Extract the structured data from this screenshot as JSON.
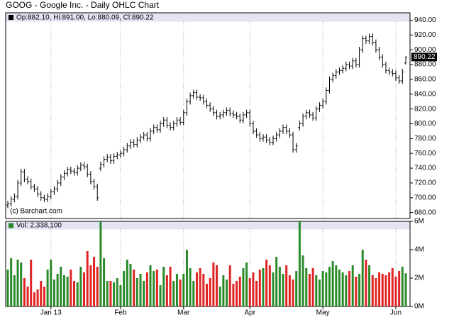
{
  "chart_data": {
    "type": "ohlc",
    "title": "GOOG - Google Inc. - Daily OHLC Chart",
    "ohlc_label": "Op:882.10, Hi:891.00, Lo:880.09, Cl:890.22",
    "last_label": "890.22",
    "credit": "(c) Barchart.com",
    "volume_label": "Vol: 2,338,100",
    "bar_color": "#000000",
    "up_color": "#2a8a2a",
    "down_color": "#e02424",
    "categories": [
      null,
      null,
      null,
      null,
      null,
      null,
      null,
      null,
      null,
      null,
      null,
      null,
      null,
      "Jan 13",
      null,
      null,
      null,
      null,
      null,
      null,
      null,
      null,
      null,
      null,
      null,
      null,
      null,
      null,
      null,
      null,
      null,
      null,
      null,
      null,
      "Feb",
      null,
      null,
      null,
      null,
      null,
      null,
      null,
      null,
      null,
      null,
      null,
      null,
      null,
      null,
      null,
      null,
      null,
      null,
      "Mar",
      null,
      null,
      null,
      null,
      null,
      null,
      null,
      null,
      null,
      null,
      null,
      null,
      null,
      null,
      null,
      null,
      null,
      null,
      null,
      "Apr",
      null,
      null,
      null,
      null,
      null,
      null,
      null,
      null,
      null,
      null,
      null,
      null,
      null,
      null,
      null,
      null,
      null,
      null,
      null,
      null,
      null,
      "May",
      null,
      null,
      null,
      null,
      null,
      null,
      null,
      null,
      null,
      null,
      null,
      null,
      null,
      null,
      null,
      null,
      null,
      null,
      null,
      null,
      null,
      "Jun",
      null,
      null,
      null
    ],
    "open": [
      690,
      692,
      698,
      702,
      720,
      735,
      725,
      722,
      715,
      712,
      705,
      700,
      698,
      702,
      708,
      712,
      720,
      728,
      733,
      738,
      736,
      734,
      740,
      744,
      742,
      732,
      722,
      715,
      740,
      745,
      752,
      755,
      750,
      756,
      758,
      760,
      765,
      770,
      775,
      772,
      778,
      782,
      785,
      780,
      790,
      795,
      792,
      800,
      805,
      798,
      795,
      800,
      805,
      802,
      815,
      830,
      838,
      842,
      836,
      835,
      830,
      825,
      820,
      815,
      810,
      812,
      815,
      818,
      814,
      812,
      810,
      805,
      812,
      815,
      800,
      790,
      785,
      780,
      782,
      778,
      775,
      780,
      785,
      790,
      795,
      790,
      785,
      765,
      795,
      800,
      810,
      815,
      812,
      808,
      820,
      825,
      830,
      845,
      860,
      865,
      870,
      872,
      875,
      880,
      878,
      885,
      880,
      900,
      915,
      912,
      918,
      910,
      900,
      890,
      880,
      872,
      870,
      868,
      862,
      858,
      882.1
    ],
    "high": [
      696,
      702,
      706,
      724,
      739,
      739,
      729,
      726,
      719,
      716,
      709,
      704,
      706,
      712,
      716,
      724,
      732,
      737,
      742,
      742,
      740,
      744,
      748,
      748,
      746,
      736,
      726,
      719,
      749,
      756,
      759,
      759,
      760,
      762,
      764,
      769,
      774,
      779,
      779,
      782,
      786,
      789,
      789,
      794,
      799,
      799,
      804,
      809,
      809,
      802,
      804,
      809,
      809,
      819,
      834,
      842,
      846,
      846,
      840,
      839,
      834,
      829,
      824,
      819,
      816,
      819,
      822,
      822,
      818,
      816,
      814,
      816,
      819,
      819,
      804,
      794,
      789,
      786,
      786,
      782,
      784,
      789,
      794,
      799,
      799,
      794,
      789,
      774,
      804,
      814,
      819,
      819,
      816,
      824,
      829,
      834,
      849,
      864,
      869,
      874,
      876,
      879,
      884,
      884,
      889,
      889,
      904,
      919,
      919,
      922,
      922,
      914,
      904,
      894,
      884,
      876,
      874,
      872,
      866,
      874,
      891.0
    ],
    "low": [
      686,
      688,
      694,
      698,
      716,
      721,
      718,
      711,
      708,
      701,
      696,
      694,
      694,
      698,
      704,
      708,
      716,
      724,
      729,
      732,
      730,
      730,
      736,
      738,
      728,
      718,
      711,
      696,
      736,
      741,
      748,
      746,
      746,
      752,
      754,
      756,
      761,
      766,
      768,
      768,
      774,
      778,
      776,
      776,
      786,
      788,
      788,
      796,
      794,
      791,
      791,
      796,
      798,
      798,
      811,
      826,
      834,
      832,
      831,
      826,
      821,
      816,
      811,
      806,
      806,
      808,
      811,
      810,
      808,
      806,
      801,
      801,
      808,
      796,
      786,
      781,
      776,
      776,
      774,
      771,
      771,
      776,
      781,
      786,
      786,
      781,
      761,
      761,
      791,
      796,
      806,
      808,
      804,
      804,
      816,
      821,
      826,
      841,
      856,
      861,
      866,
      868,
      871,
      874,
      874,
      876,
      876,
      896,
      908,
      908,
      906,
      896,
      886,
      876,
      868,
      866,
      864,
      858,
      854,
      854,
      880.09
    ],
    "close": [
      692,
      698,
      702,
      720,
      735,
      725,
      722,
      715,
      712,
      705,
      700,
      698,
      702,
      708,
      712,
      720,
      728,
      733,
      738,
      736,
      734,
      740,
      744,
      742,
      732,
      722,
      715,
      700,
      745,
      752,
      755,
      750,
      756,
      758,
      760,
      765,
      770,
      775,
      772,
      778,
      782,
      785,
      780,
      790,
      795,
      792,
      800,
      805,
      798,
      795,
      800,
      805,
      802,
      815,
      830,
      838,
      842,
      836,
      835,
      830,
      825,
      820,
      815,
      810,
      812,
      815,
      818,
      814,
      812,
      810,
      805,
      812,
      815,
      800,
      790,
      785,
      780,
      782,
      778,
      775,
      780,
      785,
      790,
      795,
      790,
      785,
      765,
      770,
      800,
      810,
      815,
      812,
      808,
      820,
      825,
      830,
      845,
      860,
      865,
      870,
      872,
      875,
      880,
      878,
      885,
      880,
      900,
      915,
      912,
      918,
      910,
      900,
      890,
      880,
      872,
      870,
      868,
      862,
      858,
      870,
      890.22
    ],
    "volume": [
      2600000,
      3400000,
      2200000,
      3300000,
      3100000,
      2000000,
      1400000,
      3300000,
      1000000,
      1200000,
      1800000,
      1400000,
      2600000,
      3300000,
      1900000,
      2300000,
      2800000,
      2200000,
      2100000,
      2600000,
      1800000,
      1700000,
      2800000,
      2400000,
      3900000,
      2900000,
      3500000,
      2800000,
      6200000,
      3400000,
      1800000,
      1800000,
      1700000,
      2000000,
      1500000,
      2500000,
      3300000,
      3000000,
      2600000,
      2000000,
      2300000,
      1800000,
      2400000,
      2900000,
      2500000,
      2600000,
      1500000,
      2800000,
      2200000,
      2800000,
      1800000,
      2300000,
      1900000,
      2300000,
      4000000,
      2700000,
      1800000,
      2400000,
      2700000,
      2300000,
      1600000,
      2000000,
      3100000,
      2900000,
      1400000,
      2200000,
      1900000,
      2900000,
      1600000,
      1800000,
      2100000,
      2700000,
      3100000,
      2000000,
      2400000,
      1800000,
      2600000,
      2700000,
      3300000,
      2900000,
      2400000,
      3500000,
      2800000,
      2300000,
      2900000,
      2200000,
      1900000,
      2500000,
      6200000,
      3600000,
      2700000,
      2300000,
      2700000,
      2200000,
      1900000,
      2500000,
      2400000,
      2800000,
      3200000,
      2900000,
      2600000,
      2400000,
      2200000,
      2500000,
      2900000,
      2100000,
      2300000,
      4000000,
      3300000,
      2900000,
      2200000,
      2000000,
      2400000,
      2300000,
      2200000,
      2400000,
      2700000,
      2100000,
      2500000,
      2800000,
      2338100
    ],
    "ylim": [
      672,
      950
    ],
    "yticks": [
      {
        "value": 680,
        "label": "680.00"
      },
      {
        "value": 700,
        "label": "700.00"
      },
      {
        "value": 720,
        "label": "720.00"
      },
      {
        "value": 740,
        "label": "740.00"
      },
      {
        "value": 760,
        "label": "760.00"
      },
      {
        "value": 780,
        "label": "780.00"
      },
      {
        "value": 800,
        "label": "800.00"
      },
      {
        "value": 820,
        "label": "820.00"
      },
      {
        "value": 840,
        "label": "840.00"
      },
      {
        "value": 860,
        "label": "860.00"
      },
      {
        "value": 880,
        "label": "880.00"
      },
      {
        "value": 900,
        "label": "900.00"
      },
      {
        "value": 920,
        "label": "920.00"
      },
      {
        "value": 940,
        "label": "940.00"
      }
    ],
    "y2lim": [
      0,
      6000000
    ],
    "y2ticks": [
      {
        "value": 0,
        "label": "0M"
      },
      {
        "value": 2000000,
        "label": "2M"
      },
      {
        "value": 4000000,
        "label": "4M"
      },
      {
        "value": 6000000,
        "label": "6M"
      }
    ]
  }
}
